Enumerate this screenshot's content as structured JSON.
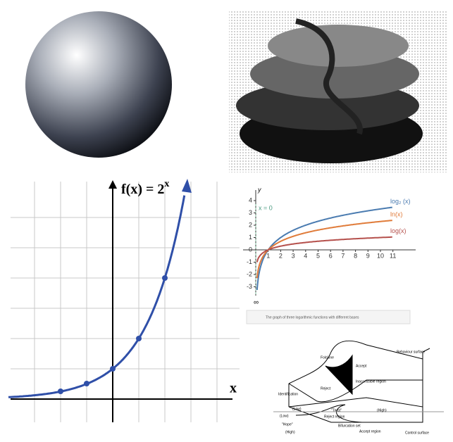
{
  "exp_graph": {
    "title": "f(x)  = 2",
    "title_exponent": "x",
    "x_label": "x"
  },
  "log_graph": {
    "y_label": "y",
    "asymptote_label": "x = 0",
    "xticks": [
      1,
      2,
      3,
      4,
      5,
      6,
      7,
      8,
      9,
      10,
      11
    ],
    "yticks": [
      -3,
      -2,
      -1,
      0,
      1,
      2,
      3,
      4
    ],
    "bottom_label": "∞",
    "curves": [
      {
        "name": "log₂ (x)",
        "color": "#4a7bb0"
      },
      {
        "name": "ln(x)",
        "color": "#e07b39"
      },
      {
        "name": "log(x)",
        "color": "#b5504c"
      }
    ],
    "caption": "The graph of three logarithmic functions with different bases"
  },
  "catastrophe_diagram": {
    "labels": [
      "Fold line",
      "Accept",
      "Behaviour surface",
      "Inaccessible region",
      "Reject",
      "Identification",
      "(Low)",
      "\"Trust\"",
      "(High)",
      "Reject region",
      "(Low)",
      "\"Hope\"",
      "(High)",
      "Bifurcation set",
      "Accept region",
      "Control surface"
    ]
  }
}
